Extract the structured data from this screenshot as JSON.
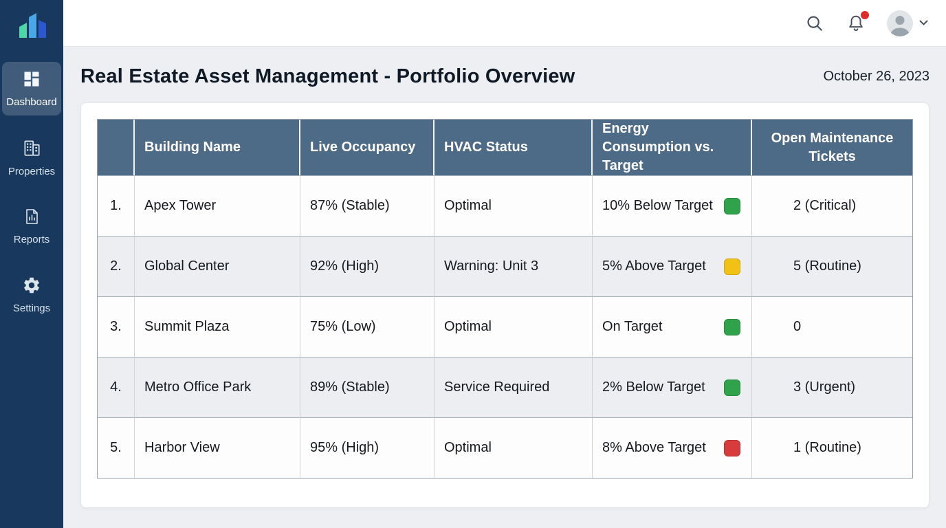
{
  "brand": {
    "logo_teal": "#4fd6a6",
    "logo_light_blue": "#49a7e8",
    "logo_blue": "#2b57cf"
  },
  "sidebar": {
    "items": [
      {
        "label": "Dashboard",
        "icon": "dashboard-icon",
        "active": true
      },
      {
        "label": "Properties",
        "icon": "buildings-icon",
        "active": false
      },
      {
        "label": "Reports",
        "icon": "report-icon",
        "active": false
      },
      {
        "label": "Settings",
        "icon": "gear-icon",
        "active": false
      }
    ]
  },
  "topbar": {
    "icons": [
      "search-icon",
      "bell-icon",
      "avatar",
      "chevron-down-icon"
    ],
    "notification_dot_color": "#e02b2b"
  },
  "header": {
    "title": "Real Estate Asset Management - Portfolio Overview",
    "date": "October 26, 2023"
  },
  "table": {
    "columns": [
      "",
      "Building Name",
      "Live Occupancy",
      "HVAC Status",
      "Energy Consumption vs. Target",
      "Open Maintenance Tickets"
    ],
    "status_colors": {
      "green": "#31a24c",
      "yellow": "#f2c116",
      "red": "#d83b3b"
    },
    "rows": [
      {
        "num": "1.",
        "building": "Apex Tower",
        "occupancy": "87% (Stable)",
        "hvac": "Optimal",
        "energy": "10% Below Target",
        "energy_status": "green",
        "tickets": "2 (Critical)"
      },
      {
        "num": "2.",
        "building": "Global Center",
        "occupancy": "92% (High)",
        "hvac": "Warning: Unit 3",
        "energy": "5% Above Target",
        "energy_status": "yellow",
        "tickets": "5 (Routine)"
      },
      {
        "num": "3.",
        "building": "Summit Plaza",
        "occupancy": "75% (Low)",
        "hvac": "Optimal",
        "energy": "On Target",
        "energy_status": "green",
        "tickets": "0"
      },
      {
        "num": "4.",
        "building": "Metro Office Park",
        "occupancy": "89% (Stable)",
        "hvac": "Service Required",
        "energy": "2% Below Target",
        "energy_status": "green",
        "tickets": "3 (Urgent)"
      },
      {
        "num": "5.",
        "building": "Harbor View",
        "occupancy": "95% (High)",
        "hvac": "Optimal",
        "energy": "8% Above Target",
        "energy_status": "red",
        "tickets": "1 (Routine)"
      }
    ]
  }
}
